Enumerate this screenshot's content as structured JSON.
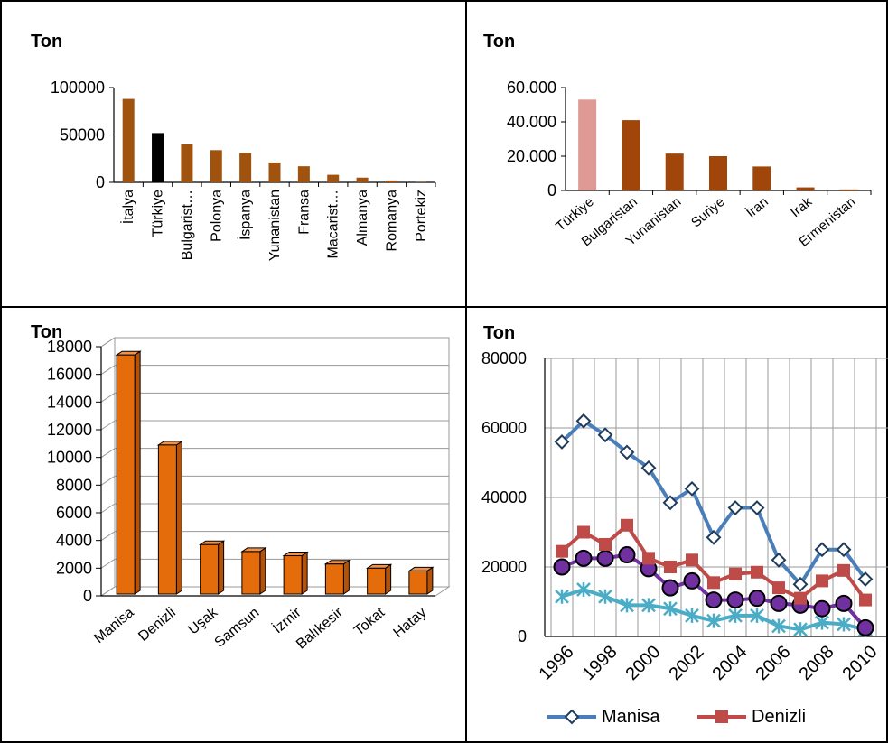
{
  "chart_data": [
    {
      "type": "bar",
      "ylabel": "Ton",
      "ylim": [
        0,
        100000
      ],
      "yticks": [
        "100000",
        "50000",
        "0"
      ],
      "categories": [
        "İtalya",
        "Türkiye",
        "Bulgarist…",
        "Polonya",
        "İspanya",
        "Yunanistan",
        "Fransa",
        "Macarist…",
        "Almanya",
        "Romanya",
        "Portekiz"
      ],
      "values": [
        88000,
        52000,
        40000,
        34000,
        31000,
        21000,
        17000,
        8000,
        5000,
        2000,
        300
      ],
      "colors": [
        "#a0520f",
        "#000000",
        "#a0520f",
        "#a0520f",
        "#a0520f",
        "#a0520f",
        "#a0520f",
        "#a0520f",
        "#a0520f",
        "#a0520f",
        "#a0520f"
      ],
      "grid": false,
      "legend": "none"
    },
    {
      "type": "bar",
      "ylabel": "Ton",
      "ylim": [
        0,
        60000
      ],
      "yticks": [
        "60.000",
        "40.000",
        "20.000",
        "0"
      ],
      "categories": [
        "Türkiye",
        "Bulgaristan",
        "Yunanistan",
        "Suriye",
        "İran",
        "Irak",
        "Ermenistan"
      ],
      "values": [
        53000,
        41000,
        21500,
        20000,
        14000,
        1800,
        600
      ],
      "colors": [
        "#e09a96",
        "#a0460a",
        "#a0460a",
        "#a0460a",
        "#a0460a",
        "#a0460a",
        "#a0460a"
      ],
      "grid": false,
      "legend": "none"
    },
    {
      "type": "bar",
      "ylabel": "Ton",
      "ylim": [
        0,
        18000
      ],
      "yticks": [
        "18000",
        "16000",
        "14000",
        "12000",
        "10000",
        "8000",
        "6000",
        "4000",
        "2000",
        "0"
      ],
      "categories": [
        "Manisa",
        "Denizli",
        "Uşak",
        "Samsun",
        "İzmir",
        "Balıkesir",
        "Tokat",
        "Hatay"
      ],
      "values": [
        17400,
        10900,
        3700,
        3200,
        2900,
        2300,
        2000,
        1800
      ],
      "color": "#e46c0a",
      "grid": true,
      "legend": "none"
    },
    {
      "type": "line",
      "ylabel": "Ton",
      "ylim": [
        0,
        80000
      ],
      "yticks": [
        "80000",
        "60000",
        "40000",
        "20000",
        "0"
      ],
      "x": [
        1996,
        1997,
        1998,
        1999,
        2000,
        2001,
        2002,
        2003,
        2004,
        2005,
        2006,
        2007,
        2008,
        2009,
        2010
      ],
      "xtick_labels": [
        "1996",
        "1998",
        "2000",
        "2002",
        "2004",
        "2006",
        "2008",
        "2010"
      ],
      "grid": true,
      "legend": "bottom",
      "series": [
        {
          "name": "Manisa",
          "color": "#4a7ebb",
          "marker": "diamond",
          "values": [
            56000,
            62000,
            58000,
            53000,
            48500,
            38500,
            42500,
            28500,
            37000,
            37000,
            22000,
            15000,
            25000,
            25000,
            16500
          ]
        },
        {
          "name": "Denizli",
          "color": "#be4b48",
          "marker": "square",
          "values": [
            24500,
            30000,
            26500,
            32000,
            22500,
            20000,
            22000,
            15500,
            18000,
            18500,
            14000,
            11000,
            16000,
            19000,
            10500
          ]
        },
        {
          "name": "",
          "color": "#7030a0",
          "marker": "circle",
          "values": [
            20000,
            22500,
            22500,
            23500,
            19500,
            14000,
            16000,
            10500,
            10500,
            11000,
            9500,
            9000,
            8000,
            9500,
            2500
          ]
        },
        {
          "name": "",
          "color": "#4bacc6",
          "marker": "x",
          "values": [
            11500,
            13500,
            11500,
            9000,
            9000,
            8000,
            6000,
            4500,
            6000,
            6000,
            3000,
            2000,
            4000,
            3500,
            2000
          ]
        }
      ]
    }
  ]
}
